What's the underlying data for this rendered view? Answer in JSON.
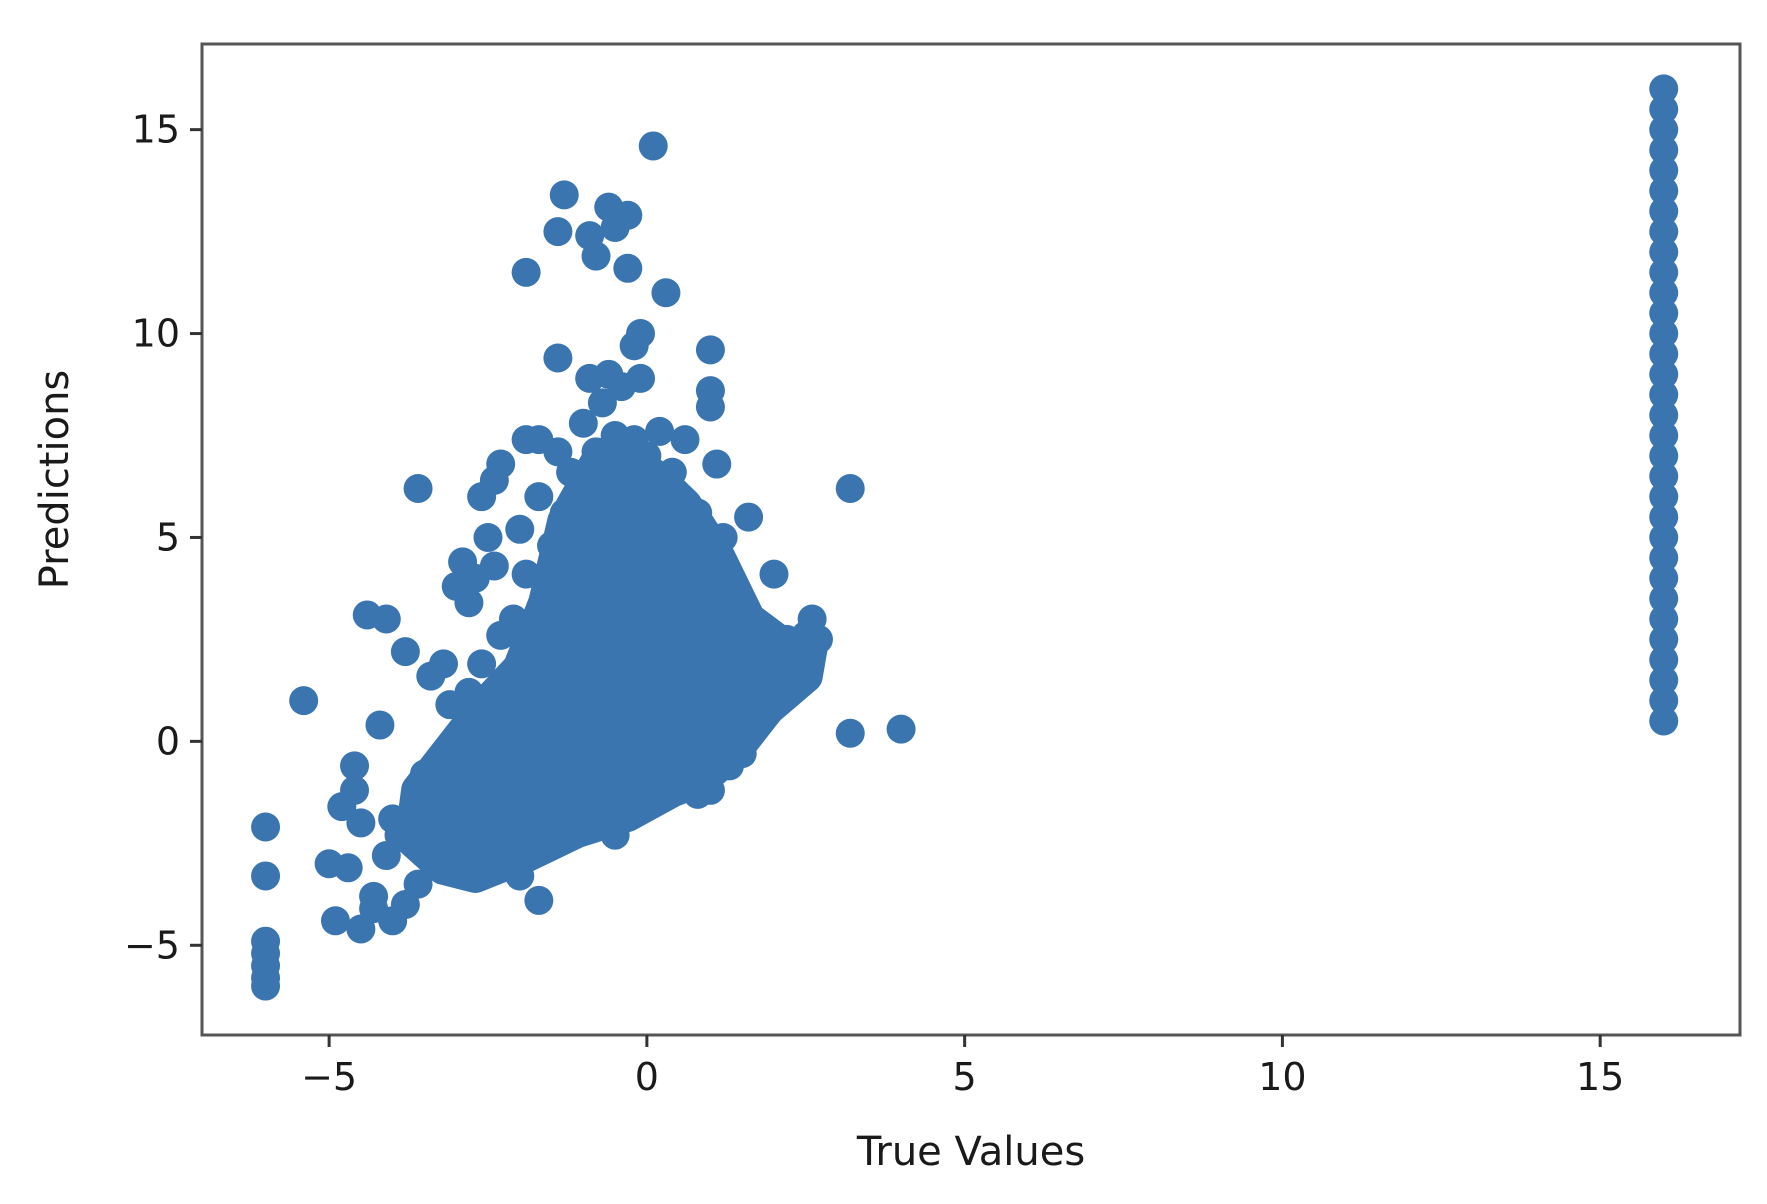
{
  "chart_data": {
    "type": "scatter",
    "title": "",
    "xlabel": "True Values",
    "ylabel": "Predictions",
    "xlim": [
      -7,
      17.2
    ],
    "ylim": [
      -7.2,
      17.1
    ],
    "xticks": [
      -5,
      0,
      5,
      10,
      15
    ],
    "yticks": [
      -5,
      0,
      5,
      10,
      15
    ],
    "xtick_labels": [
      "−5",
      "0",
      "5",
      "10",
      "15"
    ],
    "ytick_labels": [
      "−5",
      "0",
      "5",
      "10",
      "15"
    ],
    "grid": false,
    "color": "#3a75b0",
    "series": [
      {
        "points": [
          [
            -6.0,
            -2.1
          ],
          [
            -6.0,
            -3.3
          ],
          [
            -6.0,
            -4.9
          ],
          [
            -6.0,
            -5.2
          ],
          [
            -6.0,
            -5.5
          ],
          [
            -6.0,
            -5.8
          ],
          [
            -6.0,
            -6.0
          ],
          [
            -5.4,
            1.0
          ],
          [
            -5.0,
            -3.0
          ],
          [
            -4.9,
            -4.4
          ],
          [
            -4.8,
            -1.6
          ],
          [
            -4.7,
            -3.1
          ],
          [
            -4.6,
            -0.6
          ],
          [
            -4.6,
            -1.2
          ],
          [
            -4.5,
            -4.6
          ],
          [
            -4.5,
            -2.0
          ],
          [
            -4.4,
            3.1
          ],
          [
            -4.3,
            -3.8
          ],
          [
            -4.3,
            -4.1
          ],
          [
            -4.2,
            0.4
          ],
          [
            -4.1,
            3.0
          ],
          [
            -4.1,
            -2.8
          ],
          [
            -4.0,
            -4.4
          ],
          [
            -4.0,
            -1.9
          ],
          [
            -3.9,
            -2.3
          ],
          [
            -3.8,
            -4.0
          ],
          [
            -3.8,
            2.2
          ],
          [
            -3.6,
            -3.5
          ],
          [
            -3.6,
            6.2
          ],
          [
            -3.5,
            -1.5
          ],
          [
            -3.5,
            -0.8
          ],
          [
            -3.4,
            1.6
          ],
          [
            -3.3,
            -2.9
          ],
          [
            -3.3,
            -1.3
          ],
          [
            -3.2,
            1.9
          ],
          [
            -3.2,
            -0.6
          ],
          [
            -3.1,
            0.9
          ],
          [
            -3.1,
            -2.3
          ],
          [
            -3.0,
            -3.1
          ],
          [
            -3.0,
            3.8
          ],
          [
            -3.0,
            -1.7
          ],
          [
            -2.9,
            4.4
          ],
          [
            -2.9,
            -0.4
          ],
          [
            -2.8,
            3.4
          ],
          [
            -2.8,
            -2.5
          ],
          [
            -2.8,
            1.2
          ],
          [
            -2.7,
            4.0
          ],
          [
            -2.7,
            -1.1
          ],
          [
            -2.6,
            6.0
          ],
          [
            -2.6,
            1.9
          ],
          [
            -2.6,
            -2.9
          ],
          [
            -2.5,
            5.0
          ],
          [
            -2.5,
            0.4
          ],
          [
            -2.5,
            -1.8
          ],
          [
            -2.4,
            6.4
          ],
          [
            -2.4,
            4.3
          ],
          [
            -2.4,
            -0.6
          ],
          [
            -2.3,
            6.8
          ],
          [
            -2.3,
            -2.6
          ],
          [
            -2.3,
            2.6
          ],
          [
            -2.2,
            -1.3
          ],
          [
            -2.2,
            1.3
          ],
          [
            -2.1,
            3.0
          ],
          [
            -2.1,
            -0.1
          ],
          [
            -2.0,
            -3.3
          ],
          [
            -2.0,
            5.2
          ],
          [
            -2.0,
            1.8
          ],
          [
            -2.0,
            -2.0
          ],
          [
            -1.9,
            7.4
          ],
          [
            -1.9,
            11.5
          ],
          [
            -1.9,
            4.1
          ],
          [
            -1.9,
            -0.8
          ],
          [
            -1.8,
            2.4
          ],
          [
            -1.8,
            0.5
          ],
          [
            -1.7,
            -3.9
          ],
          [
            -1.7,
            7.4
          ],
          [
            -1.7,
            6.0
          ],
          [
            -1.7,
            -1.5
          ],
          [
            -1.6,
            3.3
          ],
          [
            -1.6,
            1.2
          ],
          [
            -1.6,
            -0.3
          ],
          [
            -1.5,
            4.8
          ],
          [
            -1.5,
            -2.2
          ],
          [
            -1.5,
            2.0
          ],
          [
            -1.4,
            7.1
          ],
          [
            -1.4,
            12.5
          ],
          [
            -1.4,
            9.4
          ],
          [
            -1.4,
            0.6
          ],
          [
            -1.4,
            -1.0
          ],
          [
            -1.3,
            13.4
          ],
          [
            -1.3,
            5.6
          ],
          [
            -1.3,
            3.8
          ],
          [
            -1.3,
            1.5
          ],
          [
            -1.2,
            6.6
          ],
          [
            -1.2,
            2.7
          ],
          [
            -1.2,
            -0.5
          ],
          [
            -1.1,
            4.4
          ],
          [
            -1.1,
            -1.8
          ],
          [
            -1.1,
            0.8
          ],
          [
            -1.0,
            7.8
          ],
          [
            -1.0,
            5.8
          ],
          [
            -1.0,
            2.2
          ],
          [
            -1.0,
            -0.9
          ],
          [
            -0.9,
            12.4
          ],
          [
            -0.9,
            8.9
          ],
          [
            -0.9,
            3.5
          ],
          [
            -0.9,
            1.2
          ],
          [
            -0.8,
            11.9
          ],
          [
            -0.8,
            7.1
          ],
          [
            -0.8,
            5.1
          ],
          [
            -0.8,
            -1.4
          ],
          [
            -0.8,
            0.3
          ],
          [
            -0.7,
            8.3
          ],
          [
            -0.7,
            6.2
          ],
          [
            -0.7,
            2.9
          ],
          [
            -0.7,
            -0.6
          ],
          [
            -0.6,
            13.1
          ],
          [
            -0.6,
            9.0
          ],
          [
            -0.6,
            4.3
          ],
          [
            -0.6,
            1.7
          ],
          [
            -0.5,
            12.6
          ],
          [
            -0.5,
            7.5
          ],
          [
            -0.5,
            5.6
          ],
          [
            -0.5,
            -2.3
          ],
          [
            -0.5,
            0.6
          ],
          [
            -0.4,
            8.7
          ],
          [
            -0.4,
            3.7
          ],
          [
            -0.4,
            2.1
          ],
          [
            -0.4,
            -1.1
          ],
          [
            -0.3,
            11.6
          ],
          [
            -0.3,
            12.9
          ],
          [
            -0.3,
            6.8
          ],
          [
            -0.3,
            4.9
          ],
          [
            -0.3,
            1.0
          ],
          [
            -0.2,
            9.7
          ],
          [
            -0.2,
            7.4
          ],
          [
            -0.2,
            3.1
          ],
          [
            -0.2,
            -0.4
          ],
          [
            -0.1,
            10.0
          ],
          [
            -0.1,
            8.9
          ],
          [
            -0.1,
            5.9
          ],
          [
            -0.1,
            2.4
          ],
          [
            -0.1,
            -1.5
          ],
          [
            0.0,
            7.0
          ],
          [
            0.0,
            4.4
          ],
          [
            0.0,
            1.4
          ],
          [
            0.0,
            -0.8
          ],
          [
            0.1,
            14.6
          ],
          [
            0.1,
            6.1
          ],
          [
            0.1,
            3.4
          ],
          [
            0.1,
            0.2
          ],
          [
            0.2,
            7.6
          ],
          [
            0.2,
            5.0
          ],
          [
            0.2,
            1.9
          ],
          [
            0.2,
            -1.2
          ],
          [
            0.3,
            11.0
          ],
          [
            0.3,
            4.1
          ],
          [
            0.3,
            2.6
          ],
          [
            0.3,
            -0.3
          ],
          [
            0.4,
            6.6
          ],
          [
            0.4,
            3.0
          ],
          [
            0.4,
            0.8
          ],
          [
            0.5,
            5.3
          ],
          [
            0.5,
            1.6
          ],
          [
            0.5,
            -0.9
          ],
          [
            0.6,
            7.4
          ],
          [
            0.6,
            3.6
          ],
          [
            0.6,
            0.2
          ],
          [
            0.7,
            4.5
          ],
          [
            0.7,
            2.2
          ],
          [
            0.7,
            -0.5
          ],
          [
            0.8,
            5.6
          ],
          [
            0.8,
            1.3
          ],
          [
            0.8,
            -1.3
          ],
          [
            0.9,
            3.0
          ],
          [
            0.9,
            0.5
          ],
          [
            1.0,
            9.6
          ],
          [
            1.0,
            8.6
          ],
          [
            1.0,
            8.2
          ],
          [
            1.0,
            4.1
          ],
          [
            1.0,
            1.8
          ],
          [
            1.0,
            -1.2
          ],
          [
            1.1,
            6.8
          ],
          [
            1.1,
            2.5
          ],
          [
            1.1,
            -0.2
          ],
          [
            1.2,
            5.0
          ],
          [
            1.2,
            0.9
          ],
          [
            1.3,
            3.4
          ],
          [
            1.3,
            -0.6
          ],
          [
            1.4,
            1.6
          ],
          [
            1.4,
            0.1
          ],
          [
            1.5,
            2.7
          ],
          [
            1.5,
            -0.3
          ],
          [
            1.6,
            5.5
          ],
          [
            1.6,
            1.0
          ],
          [
            1.7,
            2.0
          ],
          [
            1.7,
            0.3
          ],
          [
            1.8,
            1.4
          ],
          [
            1.9,
            2.4
          ],
          [
            1.9,
            0.7
          ],
          [
            2.0,
            4.1
          ],
          [
            2.0,
            1.2
          ],
          [
            2.1,
            1.8
          ],
          [
            2.2,
            2.5
          ],
          [
            2.3,
            1.5
          ],
          [
            2.4,
            2.1
          ],
          [
            2.5,
            2.6
          ],
          [
            2.6,
            3.0
          ],
          [
            2.7,
            2.5
          ],
          [
            3.2,
            6.2
          ],
          [
            3.2,
            0.2
          ],
          [
            4.0,
            0.3
          ],
          [
            16.0,
            0.5
          ],
          [
            16.0,
            1.0
          ],
          [
            16.0,
            1.5
          ],
          [
            16.0,
            2.0
          ],
          [
            16.0,
            2.5
          ],
          [
            16.0,
            3.0
          ],
          [
            16.0,
            3.5
          ],
          [
            16.0,
            4.0
          ],
          [
            16.0,
            4.5
          ],
          [
            16.0,
            5.0
          ],
          [
            16.0,
            5.5
          ],
          [
            16.0,
            6.0
          ],
          [
            16.0,
            6.5
          ],
          [
            16.0,
            7.0
          ],
          [
            16.0,
            7.5
          ],
          [
            16.0,
            8.0
          ],
          [
            16.0,
            8.5
          ],
          [
            16.0,
            9.0
          ],
          [
            16.0,
            9.5
          ],
          [
            16.0,
            10.0
          ],
          [
            16.0,
            10.5
          ],
          [
            16.0,
            11.0
          ],
          [
            16.0,
            11.5
          ],
          [
            16.0,
            12.0
          ],
          [
            16.0,
            12.5
          ],
          [
            16.0,
            13.0
          ],
          [
            16.0,
            13.5
          ],
          [
            16.0,
            14.0
          ],
          [
            16.0,
            14.5
          ],
          [
            16.0,
            15.0
          ],
          [
            16.0,
            15.5
          ],
          [
            16.0,
            16.0
          ]
        ],
        "dense_regions": [
          {
            "polygon": [
              [
                -3.6,
                -1.2
              ],
              [
                -3.3,
                -0.6
              ],
              [
                -2.6,
                0.8
              ],
              [
                -2.0,
                1.8
              ],
              [
                -1.6,
                3.4
              ],
              [
                -1.3,
                5.4
              ],
              [
                -0.8,
                6.8
              ],
              [
                -0.3,
                7.0
              ],
              [
                0.2,
                6.4
              ],
              [
                0.6,
                5.8
              ],
              [
                1.1,
                4.6
              ],
              [
                1.6,
                3.0
              ],
              [
                2.2,
                2.3
              ],
              [
                2.6,
                2.5
              ],
              [
                2.5,
                1.6
              ],
              [
                1.9,
                0.8
              ],
              [
                1.4,
                -0.2
              ],
              [
                0.9,
                -0.9
              ],
              [
                0.4,
                -1.2
              ],
              [
                -0.3,
                -1.8
              ],
              [
                -1.1,
                -2.2
              ],
              [
                -1.9,
                -2.8
              ],
              [
                -2.7,
                -3.3
              ],
              [
                -3.2,
                -3.1
              ],
              [
                -3.7,
                -2.4
              ]
            ]
          }
        ]
      }
    ]
  }
}
